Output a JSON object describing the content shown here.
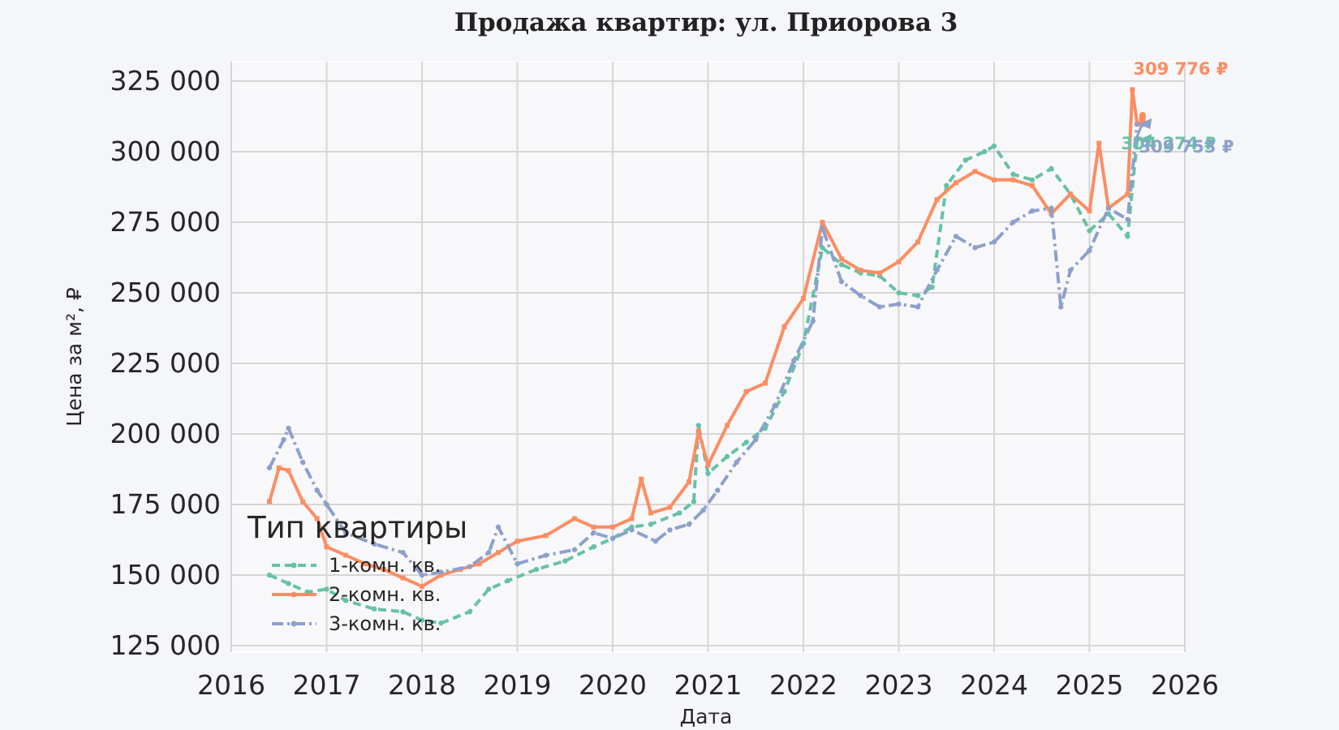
{
  "chart_data": {
    "type": "line",
    "title": "Продажа квартир: ул. Приорова 3",
    "xlabel": "Дата",
    "ylabel": "Цена за м², ₽",
    "xlim": [
      2016,
      2026
    ],
    "ylim": [
      125000,
      325000
    ],
    "x_ticks": [
      "2016",
      "2017",
      "2018",
      "2019",
      "2020",
      "2021",
      "2022",
      "2023",
      "2024",
      "2025",
      "2026"
    ],
    "y_ticks": [
      "125 000",
      "150 000",
      "175 000",
      "200 000",
      "225 000",
      "250 000",
      "275 000",
      "300 000",
      "325 000"
    ],
    "grid": true,
    "legend": {
      "title": "Тип квартиры",
      "placement": "lower-left"
    },
    "series": [
      {
        "name": "1-комн. кв.",
        "color": "#66c2a5",
        "dash": "dashed",
        "marker": "point",
        "x": [
          2016.4,
          2016.6,
          2016.8,
          2017.0,
          2017.2,
          2017.5,
          2017.8,
          2018.0,
          2018.2,
          2018.5,
          2018.7,
          2018.9,
          2019.2,
          2019.5,
          2019.8,
          2020.0,
          2020.2,
          2020.4,
          2020.7,
          2020.85,
          2020.9,
          2021.0,
          2021.2,
          2021.4,
          2021.6,
          2021.8,
          2022.0,
          2022.2,
          2022.4,
          2022.6,
          2022.8,
          2023.0,
          2023.2,
          2023.35,
          2023.5,
          2023.7,
          2023.9,
          2024.0,
          2024.2,
          2024.4,
          2024.6,
          2024.8,
          2025.0,
          2025.2,
          2025.4,
          2025.5
        ],
        "y": [
          150000,
          147000,
          144000,
          145000,
          141000,
          138000,
          137000,
          134000,
          133000,
          137000,
          145000,
          148000,
          152000,
          155000,
          160000,
          163000,
          167000,
          168000,
          172000,
          176000,
          203000,
          186000,
          192000,
          197000,
          202000,
          215000,
          232000,
          266000,
          260000,
          257000,
          256000,
          250000,
          249000,
          252000,
          288000,
          297000,
          300000,
          302000,
          292000,
          290000,
          294000,
          285000,
          272000,
          278000,
          270000,
          304274
        ]
      },
      {
        "name": "2-комн. кв.",
        "color": "#fc8d62",
        "dash": "solid",
        "marker": "square",
        "x": [
          2016.4,
          2016.5,
          2016.6,
          2016.75,
          2016.9,
          2017.0,
          2017.2,
          2017.4,
          2017.6,
          2017.8,
          2018.0,
          2018.2,
          2018.4,
          2018.6,
          2018.8,
          2019.0,
          2019.3,
          2019.6,
          2019.8,
          2020.0,
          2020.2,
          2020.3,
          2020.4,
          2020.6,
          2020.8,
          2020.9,
          2021.0,
          2021.2,
          2021.4,
          2021.6,
          2021.8,
          2022.0,
          2022.2,
          2022.4,
          2022.6,
          2022.8,
          2023.0,
          2023.2,
          2023.4,
          2023.6,
          2023.8,
          2024.0,
          2024.2,
          2024.4,
          2024.6,
          2024.8,
          2025.0,
          2025.1,
          2025.2,
          2025.4,
          2025.45,
          2025.5
        ],
        "y": [
          176000,
          188000,
          187000,
          176000,
          170000,
          160000,
          157000,
          154000,
          152000,
          149000,
          146000,
          150000,
          152000,
          154000,
          158000,
          162000,
          164000,
          170000,
          167000,
          167000,
          170000,
          184000,
          172000,
          174000,
          183000,
          201000,
          189000,
          203000,
          215000,
          218000,
          238000,
          248000,
          275000,
          262000,
          258000,
          257000,
          261000,
          268000,
          283000,
          289000,
          293000,
          290000,
          290000,
          288000,
          278000,
          285000,
          279000,
          303000,
          280000,
          285000,
          322000,
          309776
        ]
      },
      {
        "name": "3-комн. кв.",
        "color": "#8da0cb",
        "dash": "dashdot",
        "marker": "point",
        "x": [
          2016.4,
          2016.55,
          2016.6,
          2016.75,
          2016.9,
          2017.0,
          2017.2,
          2017.5,
          2017.8,
          2018.0,
          2018.2,
          2018.5,
          2018.7,
          2018.8,
          2019.0,
          2019.3,
          2019.6,
          2019.8,
          2020.0,
          2020.2,
          2020.45,
          2020.6,
          2020.8,
          2020.95,
          2021.1,
          2021.3,
          2021.5,
          2021.7,
          2021.9,
          2022.1,
          2022.2,
          2022.4,
          2022.6,
          2022.8,
          2023.0,
          2023.2,
          2023.4,
          2023.6,
          2023.8,
          2024.0,
          2024.2,
          2024.4,
          2024.6,
          2024.7,
          2024.8,
          2025.0,
          2025.2,
          2025.4,
          2025.5
        ],
        "y": [
          188000,
          198000,
          202000,
          190000,
          180000,
          175000,
          165000,
          161000,
          158000,
          150000,
          151000,
          153000,
          158000,
          167000,
          154000,
          157000,
          159000,
          165000,
          163000,
          166000,
          162000,
          166000,
          168000,
          173000,
          180000,
          190000,
          198000,
          210000,
          226000,
          240000,
          273000,
          254000,
          249000,
          245000,
          246000,
          245000,
          258000,
          270000,
          266000,
          268000,
          275000,
          279000,
          280000,
          245000,
          258000,
          265000,
          280000,
          276000,
          309753
        ]
      }
    ],
    "annotations": [
      {
        "label": "309 776 ₽",
        "series": "2-комн. кв.",
        "x": 2025.5,
        "y": 309776
      },
      {
        "label": "304 274 ₽",
        "series": "1-комн. кв.",
        "x": 2025.5,
        "y": 304274
      },
      {
        "label": "309 753 ₽",
        "series": "3-комн. кв.",
        "x": 2025.5,
        "y": 309753
      }
    ]
  }
}
